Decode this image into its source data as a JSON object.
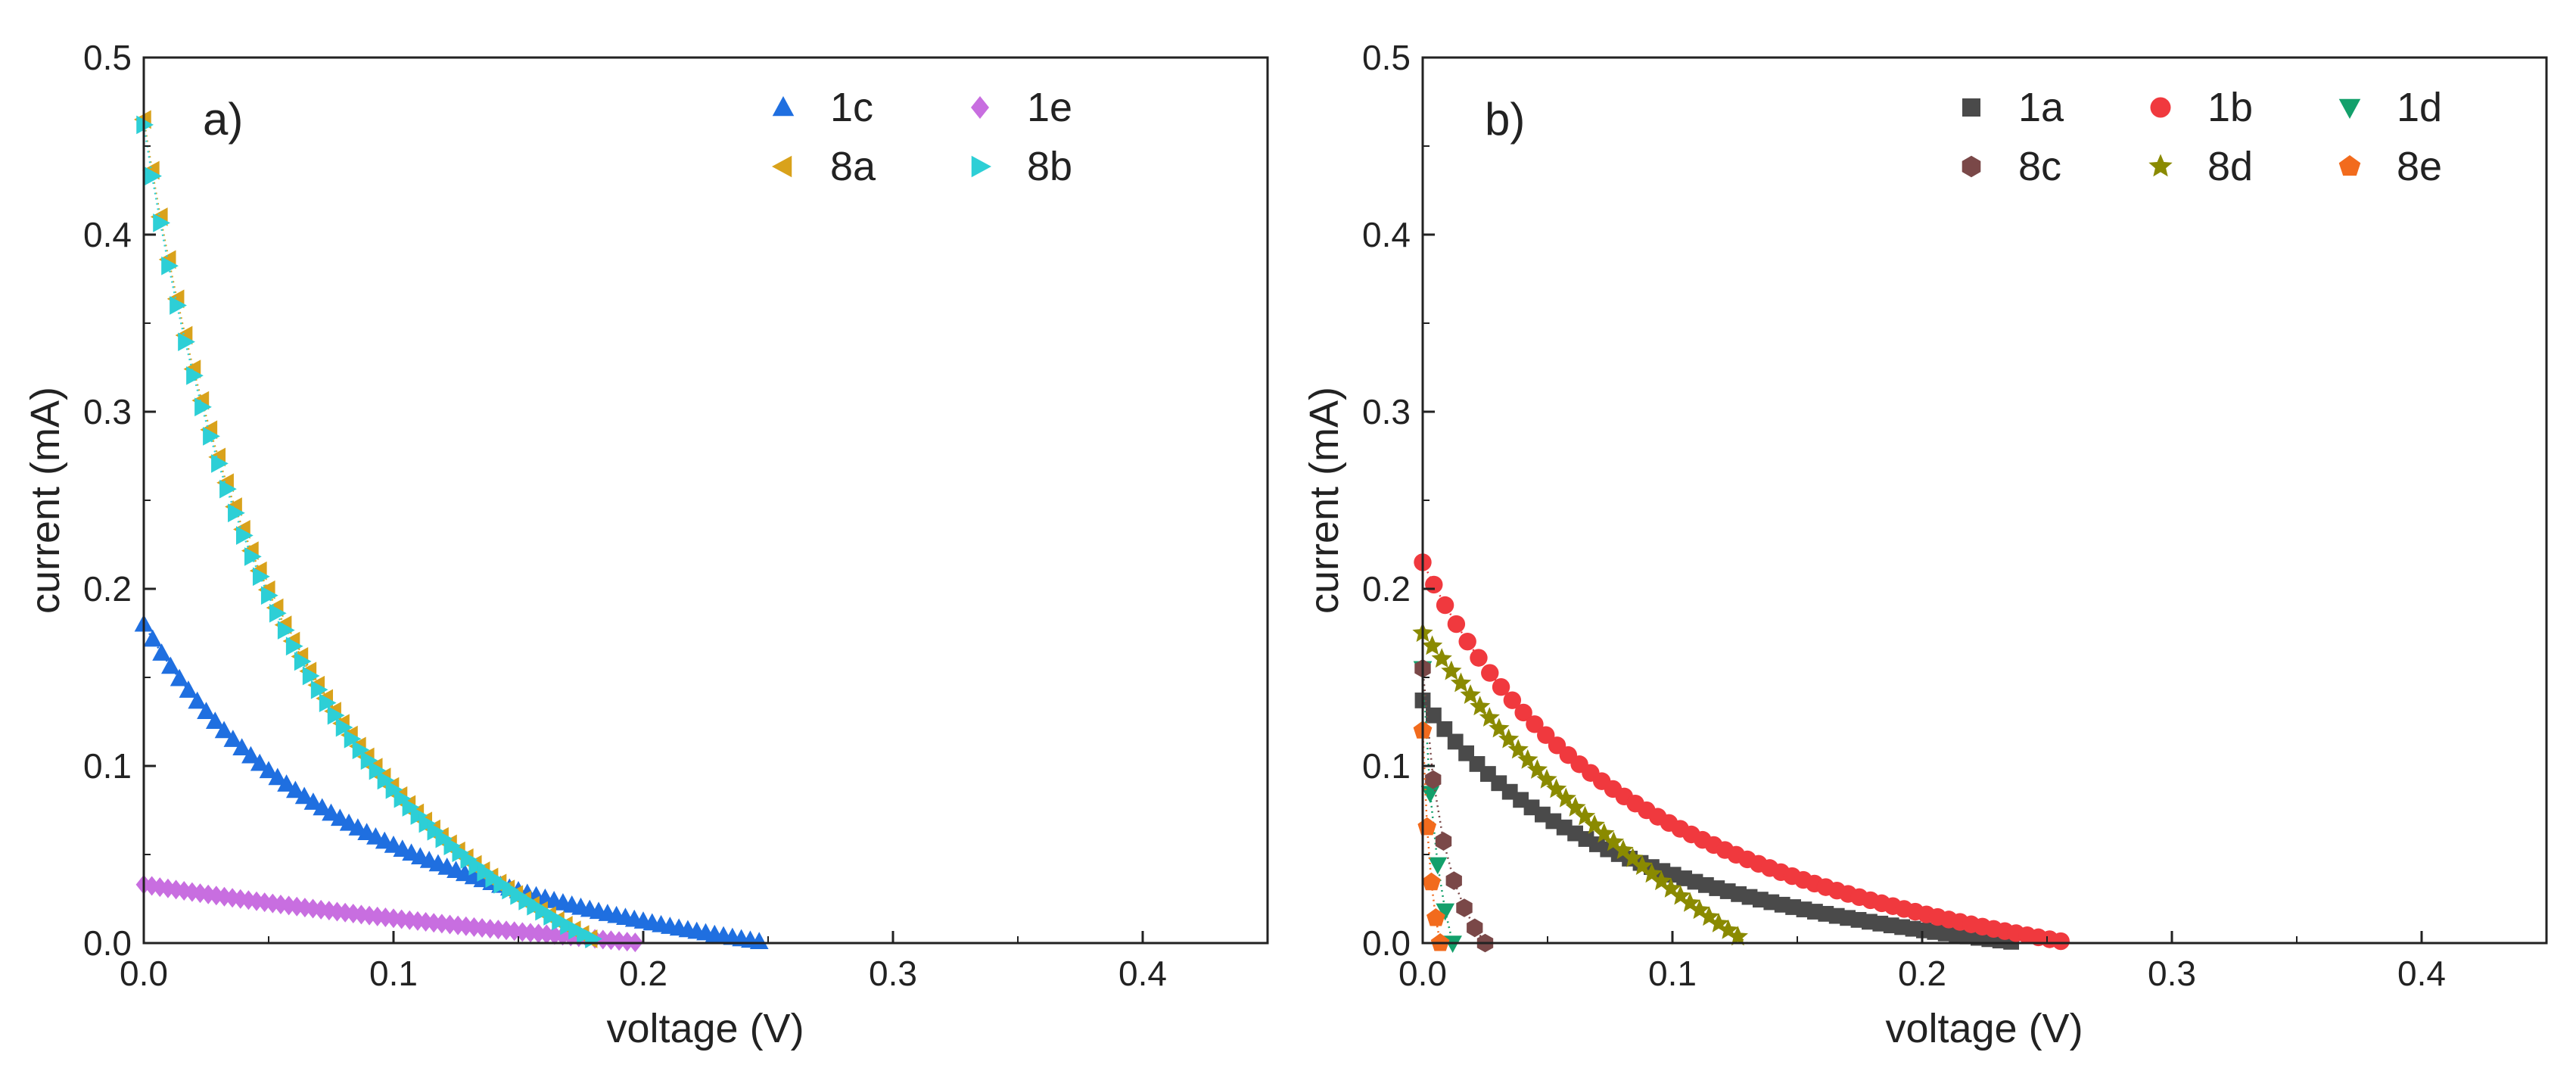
{
  "chart_data": [
    {
      "type": "scatter",
      "panel_label": "a)",
      "xlabel": "voltage (V)",
      "ylabel": "current (mA)",
      "xlim": [
        0,
        0.45
      ],
      "ylim": [
        0,
        0.5
      ],
      "xticks": [
        0.0,
        0.1,
        0.2,
        0.3,
        0.4
      ],
      "xtick_labels": [
        "0.0",
        "0.1",
        "0.2",
        "0.3",
        "0.4"
      ],
      "yticks": [
        0.0,
        0.1,
        0.2,
        0.3,
        0.4,
        0.5
      ],
      "ytick_labels": [
        "0.0",
        "0.1",
        "0.2",
        "0.3",
        "0.4",
        "0.5"
      ],
      "grid": false,
      "legend_position": "top-right",
      "legend_columns": 2,
      "series": [
        {
          "name": "1c",
          "color": "#1f6fe0",
          "marker": "triangle-up",
          "line_style": "dotted",
          "isc": 0.18,
          "voc": 0.25,
          "shape": 0.8,
          "points": 70
        },
        {
          "name": "1e",
          "color": "#c86ee0",
          "marker": "diamond",
          "line_style": "dotted",
          "isc": 0.033,
          "voc": 0.2,
          "shape": 0.12,
          "points": 62
        },
        {
          "name": "8a",
          "color": "#d9a21b",
          "marker": "triangle-left",
          "line_style": "dotted",
          "isc": 0.465,
          "voc": 0.182,
          "shape": 0.85,
          "points": 55
        },
        {
          "name": "8b",
          "color": "#2dcfd6",
          "marker": "triangle-right",
          "line_style": "dotted",
          "isc": 0.462,
          "voc": 0.183,
          "shape": 0.87,
          "points": 55
        }
      ]
    },
    {
      "type": "scatter",
      "panel_label": "b)",
      "xlabel": "voltage (V)",
      "ylabel": "current (mA)",
      "xlim": [
        0,
        0.45
      ],
      "ylim": [
        0,
        0.5
      ],
      "xticks": [
        0.0,
        0.1,
        0.2,
        0.3,
        0.4
      ],
      "xtick_labels": [
        "0.0",
        "0.1",
        "0.2",
        "0.3",
        "0.4"
      ],
      "yticks": [
        0.0,
        0.1,
        0.2,
        0.3,
        0.4,
        0.5
      ],
      "ytick_labels": [
        "0.0",
        "0.1",
        "0.2",
        "0.3",
        "0.4",
        "0.5"
      ],
      "grid": false,
      "legend_position": "top-right",
      "legend_columns": 3,
      "series": [
        {
          "name": "1a",
          "color": "#4a4a4a",
          "marker": "square",
          "line_style": "dotted",
          "isc": 0.137,
          "voc": 0.24,
          "shape": 0.85,
          "points": 55
        },
        {
          "name": "1b",
          "color": "#f0393e",
          "marker": "circle",
          "line_style": "dotted",
          "isc": 0.215,
          "voc": 0.26,
          "shape": 0.85,
          "points": 58
        },
        {
          "name": "1d",
          "color": "#13a06b",
          "marker": "triangle-down",
          "line_style": "dotted",
          "isc": 0.155,
          "voc": 0.012,
          "shape": 0.5,
          "points": 4
        },
        {
          "name": "8c",
          "color": "#7a4848",
          "marker": "hexagon",
          "line_style": "dotted",
          "isc": 0.155,
          "voc": 0.025,
          "shape": 0.8,
          "points": 6
        },
        {
          "name": "8d",
          "color": "#8a8a00",
          "marker": "star",
          "line_style": "dotted",
          "isc": 0.175,
          "voc": 0.13,
          "shape": 0.15,
          "points": 34
        },
        {
          "name": "8e",
          "color": "#f26b1d",
          "marker": "pentagon",
          "line_style": "dotted",
          "isc": 0.12,
          "voc": 0.007,
          "shape": 0.5,
          "points": 4
        }
      ]
    }
  ]
}
